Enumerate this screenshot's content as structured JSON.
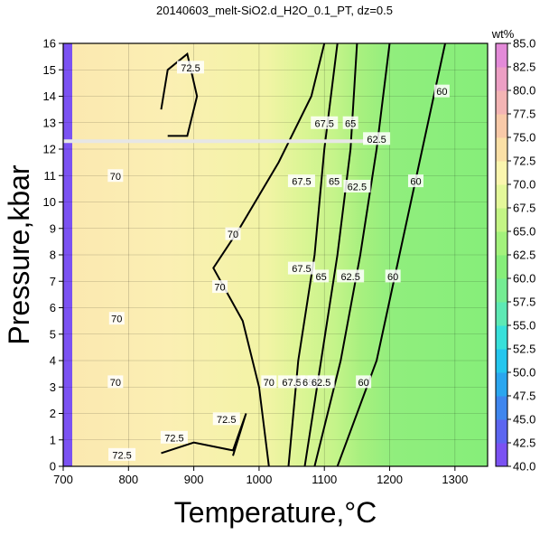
{
  "chart_data": {
    "type": "heatmap",
    "title": "20140603_melt-SiO2.d_H2O_0.1_PT, dz=0.5",
    "xlabel": "Temperature,°C",
    "ylabel": "Pressure,kbar",
    "xlim": [
      700,
      1350
    ],
    "ylim": [
      0,
      16
    ],
    "x_ticks": [
      700,
      800,
      900,
      1000,
      1100,
      1200,
      1300
    ],
    "y_ticks": [
      0,
      1,
      2,
      3,
      4,
      5,
      6,
      7,
      8,
      9,
      10,
      11,
      12,
      13,
      14,
      15,
      16
    ],
    "grid": true,
    "colorbar": {
      "unit": "wt%",
      "min": 40,
      "max": 85,
      "ticks": [
        40.0,
        42.5,
        45.0,
        47.5,
        50.0,
        52.5,
        55.0,
        57.5,
        60.0,
        62.5,
        65.0,
        67.5,
        70.0,
        72.5,
        75.0,
        77.5,
        80.0,
        82.5,
        85.0
      ],
      "colors": [
        "#7b52f2",
        "#5c66f0",
        "#3f86ee",
        "#2ba6ef",
        "#25c6ee",
        "#38e0da",
        "#5de9b4",
        "#74ec93",
        "#86ee7a",
        "#a3f27c",
        "#c4f585",
        "#e4f89a",
        "#fbf6ae",
        "#fbe0a6",
        "#f8c9a8",
        "#f3b4b4",
        "#ec9fc4",
        "#e38ad8"
      ]
    },
    "contours": [
      {
        "label": "60",
        "points": [
          [
            1120,
            0
          ],
          [
            1180,
            4
          ],
          [
            1215,
            8
          ],
          [
            1250,
            12
          ],
          [
            1285,
            16
          ]
        ]
      },
      {
        "label": "62.5",
        "points": [
          [
            1085,
            0
          ],
          [
            1125,
            4
          ],
          [
            1155,
            8
          ],
          [
            1180,
            12
          ],
          [
            1200,
            16
          ]
        ]
      },
      {
        "label": "65",
        "points": [
          [
            1070,
            0
          ],
          [
            1095,
            4
          ],
          [
            1120,
            8
          ],
          [
            1140,
            12
          ],
          [
            1150,
            16
          ]
        ]
      },
      {
        "label": "67.5",
        "points": [
          [
            1045,
            0
          ],
          [
            1060,
            4
          ],
          [
            1085,
            8
          ],
          [
            1100,
            12
          ],
          [
            1120,
            16
          ]
        ]
      },
      {
        "label": "70",
        "points": [
          [
            1015,
            0
          ],
          [
            1000,
            3
          ],
          [
            975,
            5.5
          ],
          [
            930,
            7.5
          ],
          [
            970,
            9
          ],
          [
            1030,
            11.5
          ],
          [
            1080,
            14
          ],
          [
            1100,
            16
          ]
        ]
      },
      {
        "label": "72.5",
        "points": [
          [
            850,
            13.5
          ],
          [
            860,
            15
          ],
          [
            890,
            15.6
          ],
          [
            905,
            14
          ],
          [
            890,
            12.5
          ],
          [
            860,
            12.5
          ]
        ]
      },
      {
        "label": "72.5",
        "points": [
          [
            850,
            0.5
          ],
          [
            900,
            0.9
          ],
          [
            960,
            0.6
          ],
          [
            980,
            2
          ],
          [
            960,
            0.4
          ]
        ]
      }
    ],
    "contour_label_positions": [
      {
        "text": "72.5",
        "x": 895,
        "y": 15.1
      },
      {
        "text": "67.5",
        "x": 1100,
        "y": 13.0
      },
      {
        "text": "65",
        "x": 1140,
        "y": 13.0
      },
      {
        "text": "62.5",
        "x": 1180,
        "y": 12.4
      },
      {
        "text": "60",
        "x": 1280,
        "y": 14.2
      },
      {
        "text": "67.5",
        "x": 1065,
        "y": 10.8
      },
      {
        "text": "65",
        "x": 1115,
        "y": 10.8
      },
      {
        "text": "62.5",
        "x": 1150,
        "y": 10.6
      },
      {
        "text": "60",
        "x": 1240,
        "y": 10.8
      },
      {
        "text": "70",
        "x": 960,
        "y": 8.8
      },
      {
        "text": "70",
        "x": 940,
        "y": 6.8
      },
      {
        "text": "67.5",
        "x": 1065,
        "y": 7.5
      },
      {
        "text": "65",
        "x": 1095,
        "y": 7.2
      },
      {
        "text": "62.5",
        "x": 1140,
        "y": 7.2
      },
      {
        "text": "60",
        "x": 1205,
        "y": 7.2
      },
      {
        "text": "70",
        "x": 1015,
        "y": 3.2
      },
      {
        "text": "67.5",
        "x": 1050,
        "y": 3.2
      },
      {
        "text": "65",
        "x": 1075,
        "y": 3.2
      },
      {
        "text": "62.5",
        "x": 1095,
        "y": 3.2
      },
      {
        "text": "60",
        "x": 1160,
        "y": 3.2
      },
      {
        "text": "72.5",
        "x": 950,
        "y": 1.8
      },
      {
        "text": "72.5",
        "x": 870,
        "y": 1.1
      },
      {
        "text": "72.5",
        "x": 790,
        "y": 0.45
      },
      {
        "text": "70",
        "x": 780,
        "y": 11.0
      },
      {
        "text": "70",
        "x": 780,
        "y": 3.2
      },
      {
        "text": "70",
        "x": 782,
        "y": 5.6
      }
    ],
    "artifact_line": {
      "y": 12.3,
      "x_start": 700,
      "x_end": 1180
    }
  }
}
